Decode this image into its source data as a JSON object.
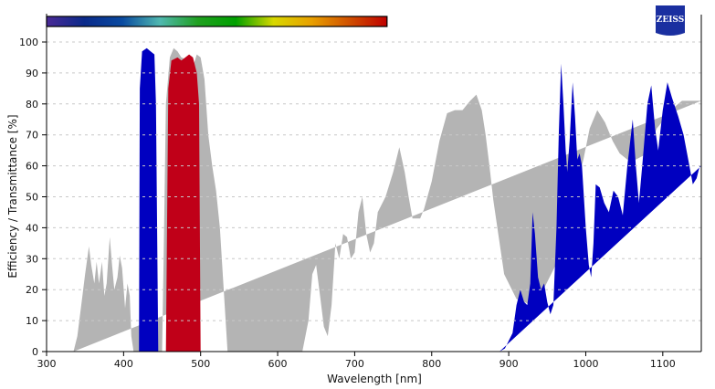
{
  "chart_data": {
    "type": "area",
    "xlabel": "Wavelength [nm]",
    "ylabel": "Efficiency / Transmittance [%]",
    "xlim": [
      300,
      1150
    ],
    "ylim": [
      0,
      100
    ],
    "xticks": [
      300,
      400,
      500,
      600,
      700,
      800,
      900,
      1000,
      1100
    ],
    "yticks": [
      0,
      10,
      20,
      30,
      40,
      50,
      60,
      70,
      80,
      90,
      100
    ],
    "grid": "horizontal dashed",
    "spectrum_bar": {
      "range": [
        300,
        742
      ],
      "colors": [
        "#4a2a96",
        "#0a2a8a",
        "#0a4aa0",
        "#50b8b0",
        "#20a020",
        "#00a000",
        "#d8d800",
        "#e8a000",
        "#d05000",
        "#c00000"
      ]
    },
    "logo": "ZEISS",
    "series": [
      {
        "color": "#b4b4b4",
        "points": [
          [
            335,
            0
          ],
          [
            340,
            5
          ],
          [
            345,
            15
          ],
          [
            350,
            25
          ],
          [
            355,
            34
          ],
          [
            358,
            28
          ],
          [
            362,
            22
          ],
          [
            365,
            29
          ],
          [
            368,
            22
          ],
          [
            372,
            29
          ],
          [
            375,
            18
          ],
          [
            378,
            22
          ],
          [
            382,
            37
          ],
          [
            385,
            28
          ],
          [
            388,
            20
          ],
          [
            392,
            24
          ],
          [
            395,
            31
          ],
          [
            398,
            27
          ],
          [
            402,
            14
          ],
          [
            405,
            22
          ],
          [
            408,
            18
          ],
          [
            410,
            5
          ],
          [
            413,
            0
          ],
          [
            450,
            0
          ],
          [
            452,
            30
          ],
          [
            455,
            80
          ],
          [
            460,
            95
          ],
          [
            465,
            98
          ],
          [
            470,
            97
          ],
          [
            475,
            95
          ],
          [
            485,
            94
          ],
          [
            490,
            92
          ],
          [
            495,
            96
          ],
          [
            500,
            95
          ],
          [
            505,
            88
          ],
          [
            510,
            70
          ],
          [
            515,
            60
          ],
          [
            520,
            52
          ],
          [
            525,
            40
          ],
          [
            530,
            20
          ],
          [
            535,
            0
          ],
          [
            632,
            0
          ],
          [
            640,
            10
          ],
          [
            645,
            25
          ],
          [
            650,
            28
          ],
          [
            655,
            18
          ],
          [
            660,
            8
          ],
          [
            665,
            5
          ],
          [
            670,
            15
          ],
          [
            675,
            35
          ],
          [
            680,
            30
          ],
          [
            685,
            38
          ],
          [
            690,
            37
          ],
          [
            695,
            30
          ],
          [
            700,
            32
          ],
          [
            705,
            45
          ],
          [
            710,
            50
          ],
          [
            715,
            38
          ],
          [
            720,
            32
          ],
          [
            725,
            35
          ],
          [
            730,
            45
          ],
          [
            740,
            50
          ],
          [
            750,
            58
          ],
          [
            758,
            66
          ],
          [
            765,
            58
          ],
          [
            770,
            50
          ],
          [
            775,
            43
          ],
          [
            785,
            43
          ],
          [
            790,
            46
          ],
          [
            800,
            55
          ],
          [
            810,
            68
          ],
          [
            820,
            77
          ],
          [
            830,
            78
          ],
          [
            840,
            78
          ],
          [
            850,
            81
          ],
          [
            858,
            83
          ],
          [
            865,
            78
          ],
          [
            870,
            70
          ],
          [
            875,
            60
          ],
          [
            880,
            49
          ],
          [
            894,
            25
          ],
          [
            910,
            17
          ],
          [
            930,
            15
          ],
          [
            947,
            21
          ],
          [
            961,
            28
          ],
          [
            980,
            45
          ],
          [
            997,
            62
          ],
          [
            1005,
            72
          ],
          [
            1015,
            78
          ],
          [
            1025,
            74
          ],
          [
            1035,
            68
          ],
          [
            1044,
            64
          ],
          [
            1054,
            62
          ],
          [
            1065,
            62
          ],
          [
            1080,
            64
          ],
          [
            1092,
            72
          ],
          [
            1105,
            76
          ],
          [
            1115,
            79
          ],
          [
            1125,
            81
          ],
          [
            1150,
            81
          ]
        ]
      },
      {
        "color": "#0000c0",
        "points": [
          [
            420,
            0
          ],
          [
            421,
            85
          ],
          [
            424,
            97
          ],
          [
            430,
            98
          ],
          [
            435,
            97
          ],
          [
            440,
            96
          ],
          [
            442,
            80
          ],
          [
            445,
            0
          ]
        ]
      },
      {
        "color": "#0000c0",
        "points": [
          [
            888,
            0
          ],
          [
            895,
            1
          ],
          [
            905,
            6
          ],
          [
            910,
            15
          ],
          [
            915,
            20
          ],
          [
            920,
            16
          ],
          [
            924,
            15
          ],
          [
            928,
            22
          ],
          [
            931,
            45
          ],
          [
            934,
            38
          ],
          [
            938,
            24
          ],
          [
            942,
            20
          ],
          [
            946,
            22
          ],
          [
            950,
            16
          ],
          [
            954,
            12
          ],
          [
            958,
            15
          ],
          [
            962,
            40
          ],
          [
            965,
            70
          ],
          [
            968,
            93
          ],
          [
            971,
            80
          ],
          [
            974,
            65
          ],
          [
            976,
            58
          ],
          [
            979,
            68
          ],
          [
            983,
            87
          ],
          [
            986,
            76
          ],
          [
            989,
            62
          ],
          [
            992,
            64
          ],
          [
            995,
            60
          ],
          [
            1000,
            40
          ],
          [
            1004,
            28
          ],
          [
            1007,
            24
          ],
          [
            1010,
            35
          ],
          [
            1013,
            54
          ],
          [
            1018,
            53
          ],
          [
            1024,
            48
          ],
          [
            1030,
            45
          ],
          [
            1036,
            52
          ],
          [
            1042,
            50
          ],
          [
            1048,
            44
          ],
          [
            1054,
            60
          ],
          [
            1061,
            75
          ],
          [
            1065,
            60
          ],
          [
            1069,
            48
          ],
          [
            1074,
            62
          ],
          [
            1080,
            80
          ],
          [
            1085,
            86
          ],
          [
            1090,
            72
          ],
          [
            1094,
            65
          ],
          [
            1100,
            78
          ],
          [
            1106,
            87
          ],
          [
            1112,
            82
          ],
          [
            1120,
            76
          ],
          [
            1127,
            70
          ],
          [
            1133,
            62
          ],
          [
            1139,
            54
          ],
          [
            1144,
            56
          ],
          [
            1148,
            60
          ],
          [
            1150,
            60
          ]
        ]
      },
      {
        "color": "#c00018",
        "points": [
          [
            455,
            0
          ],
          [
            458,
            85
          ],
          [
            462,
            94
          ],
          [
            470,
            95
          ],
          [
            475,
            94
          ],
          [
            485,
            96
          ],
          [
            490,
            95
          ],
          [
            495,
            90
          ],
          [
            498,
            80
          ],
          [
            500,
            0
          ]
        ]
      }
    ]
  }
}
